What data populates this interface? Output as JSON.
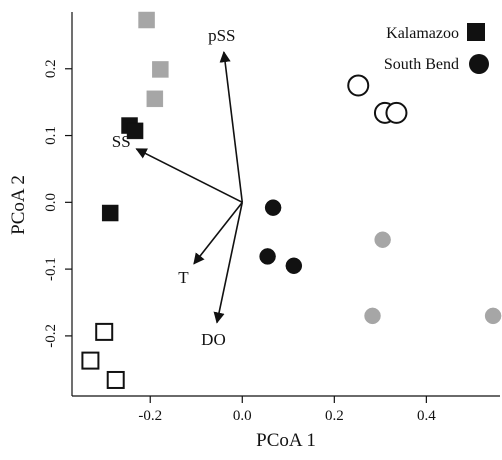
{
  "chart_data": {
    "type": "scatter",
    "title": "",
    "xlabel": "PCoA 1",
    "ylabel": "PCoA 2",
    "xlim": [
      -0.37,
      0.56
    ],
    "ylim": [
      -0.29,
      0.285
    ],
    "xticks": [
      -0.2,
      0.0,
      0.2,
      0.4
    ],
    "xtick_labels": [
      "-0.2",
      "0.0",
      "0.2",
      "0.4"
    ],
    "yticks": [
      -0.2,
      -0.1,
      0.0,
      0.1,
      0.2
    ],
    "ytick_labels": [
      "-0.2",
      "-0.1",
      "0.0",
      "0.1",
      "0.2"
    ],
    "grid": false,
    "legend": {
      "position": "top-right",
      "entries": [
        {
          "label": "Kalamazoo",
          "marker": "square"
        },
        {
          "label": "South Bend",
          "marker": "circle"
        }
      ]
    },
    "series": [
      {
        "marker": "square",
        "fill": "#111111",
        "stroke": "#111111",
        "points": [
          [
            -0.245,
            0.115
          ],
          [
            -0.233,
            0.107
          ],
          [
            -0.287,
            -0.016
          ]
        ]
      },
      {
        "marker": "square",
        "fill": "#a6a6a6",
        "stroke": "#a6a6a6",
        "points": [
          [
            -0.208,
            0.273
          ],
          [
            -0.178,
            0.199
          ],
          [
            -0.19,
            0.155
          ]
        ]
      },
      {
        "marker": "square",
        "fill": "none",
        "stroke": "#111111",
        "points": [
          [
            -0.3,
            -0.194
          ],
          [
            -0.33,
            -0.237
          ],
          [
            -0.275,
            -0.266
          ]
        ]
      },
      {
        "marker": "circle",
        "fill": "#111111",
        "stroke": "#111111",
        "points": [
          [
            0.067,
            -0.008
          ],
          [
            0.055,
            -0.081
          ],
          [
            0.112,
            -0.095
          ]
        ]
      },
      {
        "marker": "circle",
        "fill": "#a6a6a6",
        "stroke": "#a6a6a6",
        "points": [
          [
            0.305,
            -0.056
          ],
          [
            0.283,
            -0.17
          ],
          [
            0.545,
            -0.17
          ]
        ]
      },
      {
        "marker": "circle",
        "fill": "none",
        "stroke": "#111111",
        "points": [
          [
            0.252,
            0.175
          ],
          [
            0.31,
            0.134
          ],
          [
            0.335,
            0.134
          ]
        ]
      }
    ],
    "vectors": [
      {
        "label": "pSS",
        "x": -0.04,
        "y": 0.225
      },
      {
        "label": "SS",
        "x": -0.23,
        "y": 0.08
      },
      {
        "label": "T",
        "x": -0.105,
        "y": -0.092
      },
      {
        "label": "DO",
        "x": -0.055,
        "y": -0.18
      }
    ],
    "vector_origin": [
      0.0,
      0.0
    ]
  }
}
